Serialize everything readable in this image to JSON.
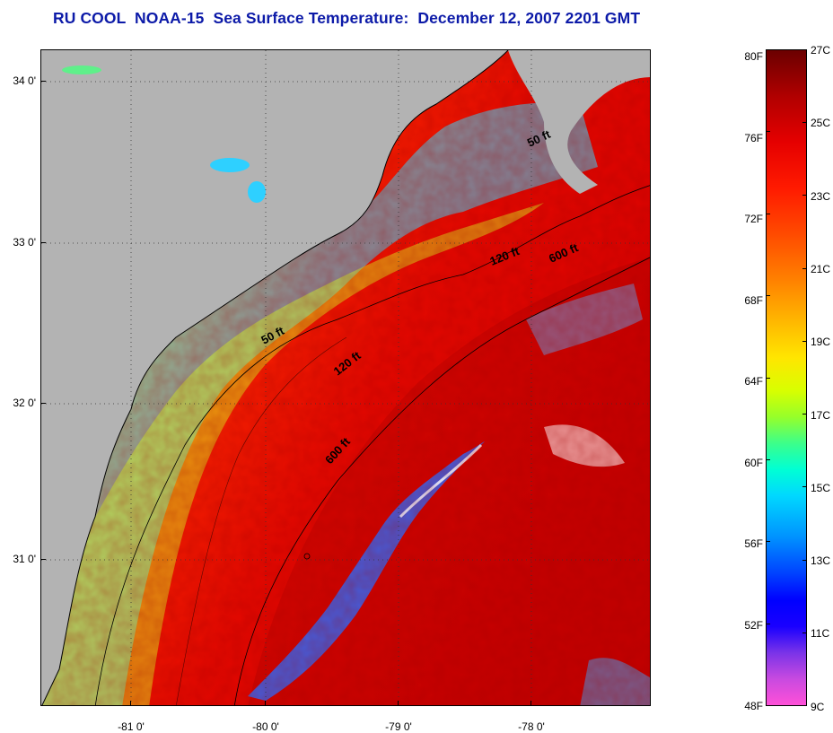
{
  "title": "RU COOL  NOAA-15  Sea Surface Temperature:  December 12, 2007 2201 GMT",
  "map": {
    "latitude_labels": [
      "34 0'",
      "33 0'",
      "32 0'",
      "31 0'"
    ],
    "longitude_labels": [
      "-81 0'",
      "-80 0'",
      "-79 0'",
      "-78 0'"
    ],
    "depth_contours": [
      {
        "label": "50 ft"
      },
      {
        "label": "120 ft"
      },
      {
        "label": "600 ft"
      },
      {
        "label": "50 ft"
      },
      {
        "label": "120 ft"
      },
      {
        "label": "600 ft"
      }
    ],
    "land_color": "#b3b3b3",
    "grid": "dotted"
  },
  "colorbar": {
    "fahrenheit_labels": [
      "80F",
      "76F",
      "72F",
      "68F",
      "64F",
      "60F",
      "56F",
      "52F",
      "48F"
    ],
    "celsius_labels": [
      "27C",
      "25C",
      "23C",
      "21C",
      "19C",
      "17C",
      "15C",
      "13C",
      "11C",
      "9C"
    ]
  }
}
